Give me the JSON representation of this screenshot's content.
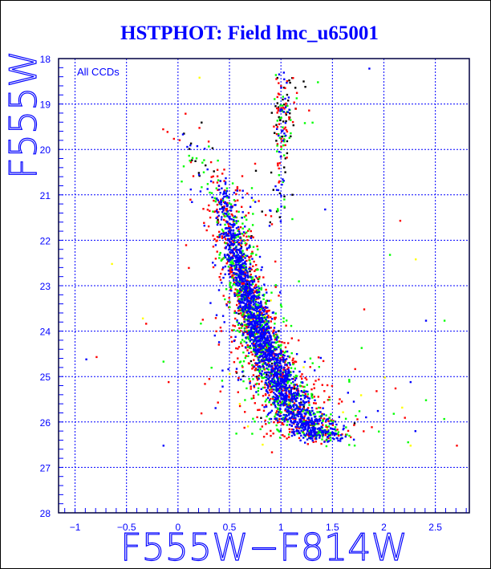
{
  "chart_data": {
    "type": "scatter",
    "title": "HSTPHOT: Field lmc_u65001",
    "xlabel": "F555W−F814W",
    "ylabel": "F555W",
    "annotation": "All CCDs",
    "xlim": [
      -1.16,
      2.83
    ],
    "ylim": [
      28,
      18
    ],
    "y_inverted": true,
    "grid": true,
    "xticks": [
      -1,
      -0.5,
      0,
      0.5,
      1,
      1.5,
      2,
      2.5
    ],
    "xtick_labels": [
      "−1",
      "−0.5",
      "0",
      "0.5",
      "1",
      "1.5",
      "2",
      "2.5"
    ],
    "yticks": [
      18,
      19,
      20,
      21,
      22,
      23,
      24,
      25,
      26,
      27,
      28
    ],
    "ytick_labels": [
      "18",
      "19",
      "20",
      "21",
      "22",
      "23",
      "24",
      "25",
      "26",
      "27",
      "28"
    ],
    "series_colors": {
      "blue": "#0000ff",
      "green": "#00ff00",
      "red": "#ff0000",
      "black": "#000000",
      "yellow": "#ffff00"
    },
    "main_sequence_ridge": [
      {
        "color": 0.4,
        "mag": 20.6,
        "spread": 0.09,
        "weight": 60
      },
      {
        "color": 0.44,
        "mag": 21.2,
        "spread": 0.08,
        "weight": 110
      },
      {
        "color": 0.5,
        "mag": 21.8,
        "spread": 0.07,
        "weight": 170
      },
      {
        "color": 0.56,
        "mag": 22.3,
        "spread": 0.065,
        "weight": 230
      },
      {
        "color": 0.62,
        "mag": 22.8,
        "spread": 0.065,
        "weight": 290
      },
      {
        "color": 0.68,
        "mag": 23.3,
        "spread": 0.07,
        "weight": 330
      },
      {
        "color": 0.74,
        "mag": 23.8,
        "spread": 0.08,
        "weight": 360
      },
      {
        "color": 0.82,
        "mag": 24.3,
        "spread": 0.09,
        "weight": 380
      },
      {
        "color": 0.92,
        "mag": 24.8,
        "spread": 0.1,
        "weight": 390
      },
      {
        "color": 1.03,
        "mag": 25.3,
        "spread": 0.12,
        "weight": 380
      },
      {
        "color": 1.16,
        "mag": 25.8,
        "spread": 0.14,
        "weight": 360
      },
      {
        "color": 1.3,
        "mag": 26.15,
        "spread": 0.15,
        "weight": 260
      },
      {
        "color": 1.45,
        "mag": 26.35,
        "spread": 0.15,
        "weight": 140
      }
    ],
    "giant_branch_ridge": [
      {
        "color": 1.02,
        "mag": 18.3,
        "spread": 0.06,
        "weight": 20
      },
      {
        "color": 1.03,
        "mag": 18.7,
        "spread": 0.05,
        "weight": 20
      },
      {
        "color": 1.03,
        "mag": 19.2,
        "spread": 0.04,
        "weight": 80
      },
      {
        "color": 1.0,
        "mag": 19.8,
        "spread": 0.03,
        "weight": 20
      },
      {
        "color": 0.99,
        "mag": 20.4,
        "spread": 0.03,
        "weight": 18
      },
      {
        "color": 0.98,
        "mag": 21.0,
        "spread": 0.04,
        "weight": 15
      },
      {
        "color": 0.9,
        "mag": 21.6,
        "spread": 0.08,
        "weight": 25
      }
    ],
    "blue_loop_ridge": [
      {
        "color": 0.05,
        "mag": 19.4,
        "spread": 0.07,
        "weight": 15
      },
      {
        "color": 0.15,
        "mag": 20.1,
        "spread": 0.08,
        "weight": 20
      },
      {
        "color": 0.3,
        "mag": 20.6,
        "spread": 0.08,
        "weight": 25
      }
    ],
    "field_outliers": [
      [
        -0.35,
        23.7
      ],
      [
        -0.8,
        24.55
      ],
      [
        -0.9,
        24.6
      ],
      [
        -0.15,
        24.65
      ],
      [
        -0.65,
        22.5
      ],
      [
        -0.1,
        25.1
      ],
      [
        -0.15,
        26.5
      ],
      [
        2.05,
        22.3
      ],
      [
        2.3,
        22.4
      ],
      [
        1.8,
        23.5
      ],
      [
        2.4,
        23.75
      ],
      [
        2.58,
        23.75
      ],
      [
        2.0,
        25.0
      ],
      [
        1.92,
        25.3
      ],
      [
        2.25,
        25.1
      ],
      [
        2.4,
        25.5
      ],
      [
        2.25,
        26.5
      ],
      [
        2.7,
        26.5
      ],
      [
        1.85,
        18.2
      ],
      [
        1.35,
        18.5
      ],
      [
        0.2,
        18.4
      ],
      [
        2.15,
        21.55
      ],
      [
        1.42,
        21.3
      ],
      [
        0.75,
        22.3
      ]
    ]
  }
}
